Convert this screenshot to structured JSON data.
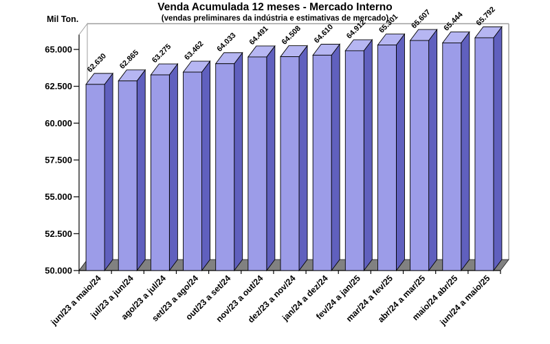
{
  "chart_data": {
    "type": "bar",
    "style": "3d-column",
    "title": "Venda Acumulada 12 meses -  Mercado Interno",
    "subtitle": "(vendas preliminares da indústria e estimativas de mercado)",
    "ylabel": "Mil Ton.",
    "xlabel": "",
    "categories": [
      "jun/23 a maio/24",
      "jul/23 a jun/24",
      "ago/23 a jul/24",
      "set/23 a ago/24",
      "out/23 a set/24",
      "nov/23 a out/24",
      "dez/23 a nov/24",
      "jan/24 a dez/24",
      "fev/24 a jan/25",
      "mar/24 a fev/25",
      "abr/24 a mar/25",
      "maio/24 abr/25",
      "jun/24 a maio/25"
    ],
    "values": [
      62630,
      62865,
      63275,
      63462,
      64033,
      64491,
      64508,
      64610,
      64912,
      65301,
      65607,
      65444,
      65792
    ],
    "value_labels": [
      "62.630",
      "62.865",
      "63.275",
      "63.462",
      "64.033",
      "64.491",
      "64.508",
      "64.610",
      "64.912",
      "65.301",
      "65.607",
      "65.444",
      "65.792"
    ],
    "ylim": [
      50000,
      65000
    ],
    "ytick_step": 2500,
    "ytick_labels": [
      "50.000",
      "52.500",
      "55.000",
      "57.500",
      "60.000",
      "62.500",
      "65.000"
    ],
    "grid": false,
    "legend": "none",
    "colors": {
      "bar_front": "#9C9CE8",
      "bar_top": "#B6B6F2",
      "bar_side": "#6060BE",
      "floor": "#818181",
      "frame": "#9E9E9E",
      "axis": "#000000",
      "text": "#000000",
      "background": "#FFFFFF"
    }
  }
}
